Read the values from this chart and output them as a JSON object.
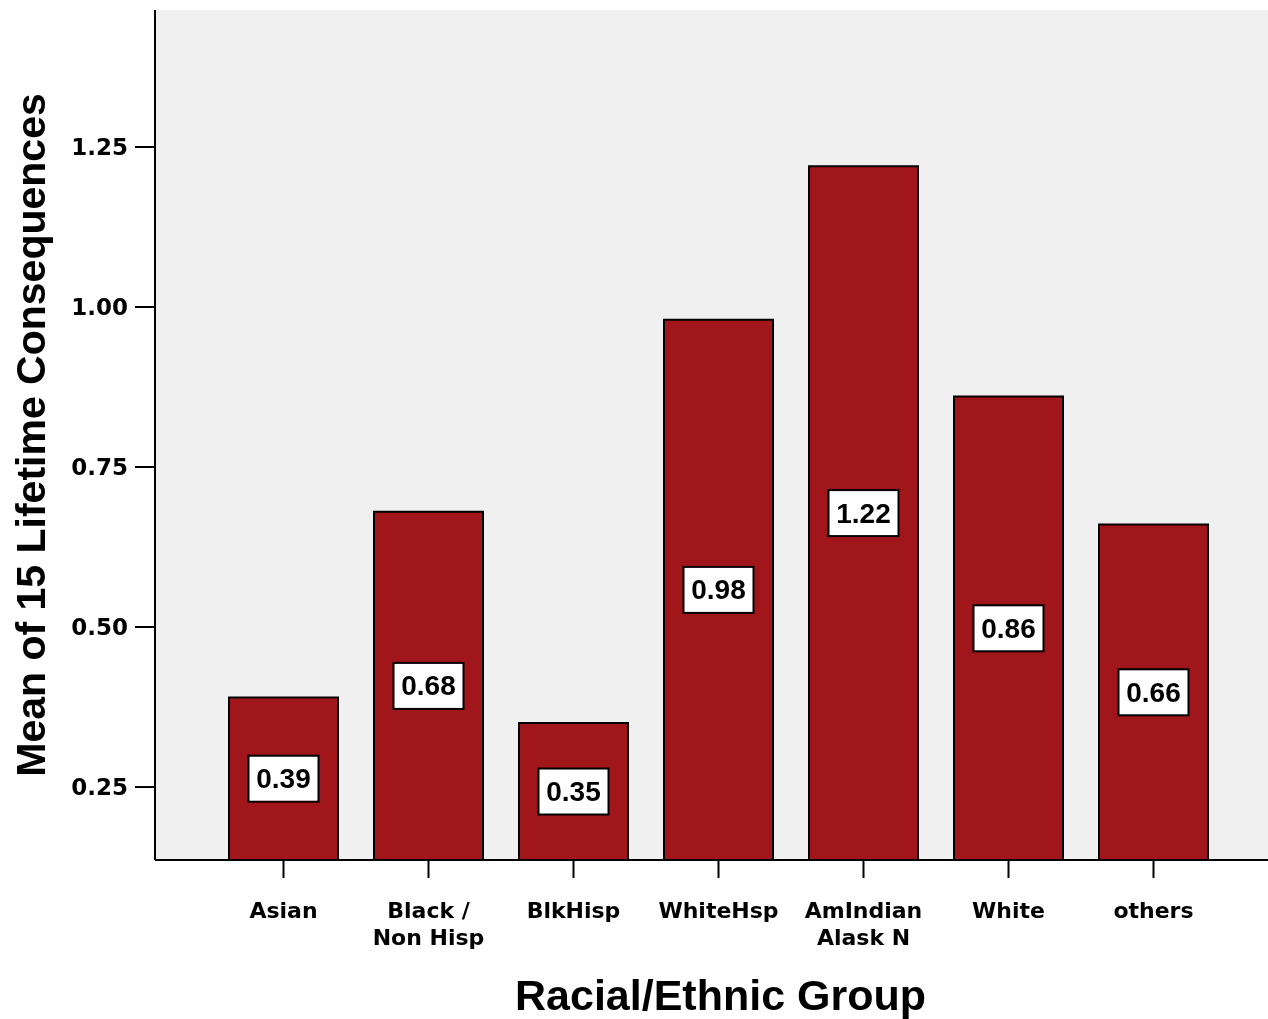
{
  "chart_data": {
    "type": "bar",
    "xlabel": "Racial/Ethnic Group",
    "ylabel": "Mean of 15 Lifetime Consequences",
    "categories": [
      "Asian",
      "Black /\nNon Hisp",
      "BlkHisp",
      "WhiteHsp",
      "AmIndian\nAlask N",
      "White",
      "others"
    ],
    "values": [
      0.39,
      0.68,
      0.35,
      0.98,
      1.22,
      0.86,
      0.66
    ],
    "color": "#a0161b",
    "ylim": [
      0.136,
      1.464
    ],
    "yticks": [
      0.25,
      {
        "value": 0.5,
        "label": "0.50"
      },
      0.75,
      {
        "value": 1.0,
        "label": "1.00"
      },
      1.25
    ],
    "data_labels": true
  }
}
